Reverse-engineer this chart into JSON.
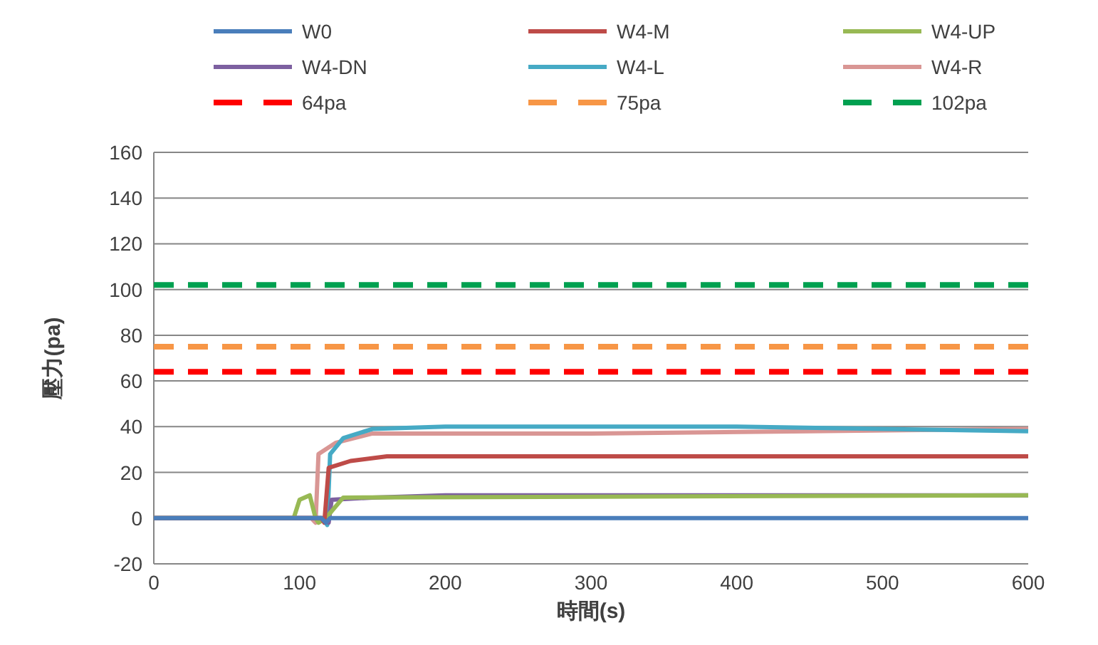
{
  "chart_data": {
    "type": "line",
    "xlabel": "時間(s)",
    "ylabel": "壓力(pa)",
    "xlim": [
      0,
      600
    ],
    "xticks": [
      0,
      100,
      200,
      300,
      400,
      500,
      600
    ],
    "ylim": [
      -20,
      160
    ],
    "yticks": [
      -20,
      0,
      20,
      40,
      60,
      80,
      100,
      120,
      140,
      160
    ],
    "grid": "y",
    "legend": "top",
    "marker": "none",
    "line_style": "solid",
    "series": [
      {
        "name": "W0",
        "color": "#4a7ebb",
        "x": [
          0,
          115,
          118,
          121,
          150,
          300,
          600
        ],
        "values": [
          0,
          0,
          -2,
          0,
          0,
          0,
          0
        ]
      },
      {
        "name": "W4-M",
        "color": "#be4b48",
        "x": [
          0,
          115,
          117,
          120,
          135,
          160,
          300,
          450,
          600
        ],
        "values": [
          0,
          0,
          -2,
          22,
          25,
          27,
          27,
          27,
          27
        ]
      },
      {
        "name": "W4-UP",
        "color": "#98b954",
        "x": [
          0,
          96,
          100,
          107,
          111,
          113,
          118,
          130,
          600
        ],
        "values": [
          0,
          0,
          8,
          10,
          0,
          -2,
          0,
          9,
          10
        ]
      },
      {
        "name": "W4-DN",
        "color": "#7d60a0",
        "x": [
          0,
          118,
          120,
          122,
          150,
          200,
          600
        ],
        "values": [
          0,
          0,
          -2,
          8,
          9,
          10,
          10
        ]
      },
      {
        "name": "W4-L",
        "color": "#46aac5",
        "x": [
          0,
          116,
          119,
          121,
          130,
          150,
          200,
          400,
          600
        ],
        "values": [
          0,
          0,
          -3,
          28,
          35,
          39,
          40,
          40,
          38
        ]
      },
      {
        "name": "W4-R",
        "color": "#d99694",
        "x": [
          0,
          108,
          111,
          113,
          125,
          150,
          300,
          450,
          600
        ],
        "values": [
          0,
          0,
          -2,
          28,
          33,
          37,
          37,
          38,
          39
        ]
      },
      {
        "name": "64pa",
        "color": "#ff0000",
        "line_style": "dashed",
        "x": [
          0,
          600
        ],
        "values": [
          64,
          64
        ]
      },
      {
        "name": "75pa",
        "color": "#f79646",
        "line_style": "dashed",
        "x": [
          0,
          600
        ],
        "values": [
          75,
          75
        ]
      },
      {
        "name": "102pa",
        "color": "#00a050",
        "line_style": "dashed",
        "x": [
          0,
          600
        ],
        "values": [
          102,
          102
        ]
      }
    ]
  }
}
